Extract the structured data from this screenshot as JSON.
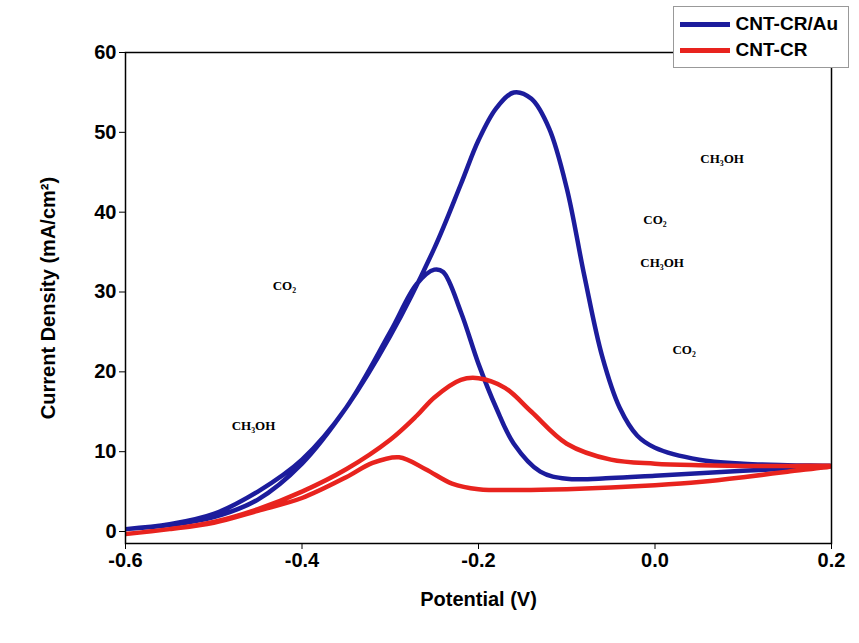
{
  "chart_data": {
    "type": "line",
    "x_label": "Potential (V)",
    "y_label": "Current Density (mA/cm²)",
    "xlim": [
      -0.6,
      0.2
    ],
    "xticks": [
      -0.6,
      -0.4,
      -0.2,
      {
        "value": 0,
        "label": "0.0"
      },
      0.2
    ],
    "ylim": [
      -1.5,
      60
    ],
    "yticks": [
      0,
      10,
      20,
      30,
      40,
      50,
      60
    ],
    "legend": "top-right",
    "series": [
      {
        "name": "CNT-CR/Au",
        "color": "#1c1c9c",
        "x": [
          -0.6,
          -0.55,
          -0.5,
          -0.45,
          -0.4,
          -0.35,
          -0.3,
          -0.25,
          -0.22,
          -0.2,
          -0.18,
          -0.16,
          -0.14,
          -0.12,
          -0.1,
          -0.08,
          -0.06,
          -0.04,
          -0.02,
          0,
          0.05,
          0.1,
          0.15,
          0.2,
          0.15,
          0.1,
          0.05,
          0,
          -0.05,
          -0.1,
          -0.13,
          -0.16,
          -0.18,
          -0.2,
          -0.22,
          -0.24,
          -0.25,
          -0.27,
          -0.3,
          -0.35,
          -0.4,
          -0.45,
          -0.5,
          -0.55,
          -0.6
        ],
        "values": [
          0.3,
          0.8,
          1.8,
          4,
          8.5,
          15.5,
          24.5,
          35.5,
          43.5,
          49,
          53,
          55,
          54.2,
          50.5,
          43,
          32,
          22,
          15.5,
          12,
          10.5,
          9,
          8.5,
          8.3,
          8.2,
          7.9,
          7.6,
          7.3,
          7,
          6.7,
          6.6,
          7.5,
          11,
          15.5,
          21,
          27.5,
          32.5,
          32.8,
          31,
          25,
          15.5,
          9,
          5,
          2.2,
          0.9,
          0.3
        ]
      },
      {
        "name": "CNT-CR",
        "color": "#e8231e",
        "x": [
          -0.6,
          -0.55,
          -0.5,
          -0.45,
          -0.4,
          -0.35,
          -0.3,
          -0.27,
          -0.25,
          -0.22,
          -0.2,
          -0.17,
          -0.14,
          -0.1,
          -0.05,
          0,
          0.05,
          0.1,
          0.15,
          0.2,
          0.15,
          0.1,
          0.05,
          0,
          -0.05,
          -0.1,
          -0.15,
          -0.2,
          -0.23,
          -0.26,
          -0.29,
          -0.32,
          -0.35,
          -0.4,
          -0.45,
          -0.5,
          -0.55,
          -0.6
        ],
        "values": [
          -0.3,
          0.3,
          1.2,
          2.8,
          5,
          7.8,
          11.5,
          14.5,
          16.8,
          19,
          19.2,
          18,
          15,
          11,
          9,
          8.5,
          8.3,
          8.2,
          8.2,
          8.2,
          7.5,
          6.8,
          6.2,
          5.8,
          5.5,
          5.3,
          5.2,
          5.3,
          6,
          7.8,
          9.3,
          8.6,
          6.8,
          4.2,
          2.6,
          1.1,
          0.3,
          -0.3
        ]
      }
    ],
    "annotations": [
      {
        "text": "CH₃OH",
        "x": 0.076,
        "y": 46.7
      },
      {
        "text": "CO₂",
        "x": 0.0,
        "y": 39
      },
      {
        "text": "CH₃OH",
        "x": 0.008,
        "y": 33.6
      },
      {
        "text": "CO₂",
        "x": 0.033,
        "y": 22.7
      },
      {
        "text": "CO₂",
        "x": -0.42,
        "y": 30.8
      },
      {
        "text": "CH₃OH",
        "x": -0.455,
        "y": 13.3
      }
    ]
  }
}
